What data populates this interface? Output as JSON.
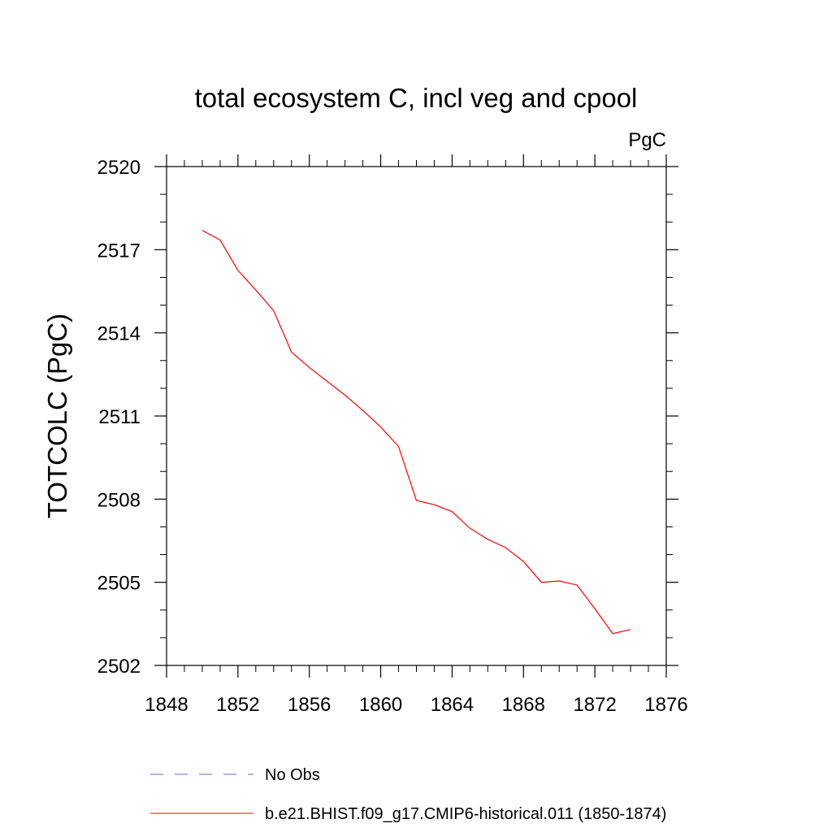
{
  "chart_data": {
    "type": "line",
    "title": "total ecosystem C, incl veg and cpool",
    "units_label": "PgC",
    "xlabel": "",
    "ylabel": "TOTCOLC  (PgC)",
    "xlim": [
      1848,
      1876
    ],
    "ylim": [
      2502,
      2520
    ],
    "x_ticks": [
      1848,
      1852,
      1856,
      1860,
      1864,
      1868,
      1872,
      1876
    ],
    "x_ticks_labels": [
      "1848",
      "1852",
      "1856",
      "1860",
      "1864",
      "1868",
      "1872",
      "1876"
    ],
    "y_ticks": [
      2502,
      2505,
      2508,
      2511,
      2514,
      2517,
      2520
    ],
    "y_ticks_labels": [
      "2502",
      "2505",
      "2508",
      "2511",
      "2514",
      "2517",
      "2520"
    ],
    "grid": false,
    "legend_position": "bottom",
    "series": [
      {
        "name": "b.e21.BHIST.f09_g17.CMIP6-historical.011 (1850-1874)",
        "color": "#ff0000",
        "x": [
          1850,
          1851,
          1852,
          1853,
          1854,
          1855,
          1856,
          1857,
          1858,
          1859,
          1860,
          1861,
          1862,
          1863,
          1864,
          1865,
          1866,
          1867,
          1868,
          1869,
          1870,
          1871,
          1872,
          1873,
          1874
        ],
        "y": [
          2517.7,
          2517.35,
          2516.25,
          2515.55,
          2514.8,
          2513.3,
          2512.75,
          2512.25,
          2511.75,
          2511.2,
          2510.6,
          2509.9,
          2507.95,
          2507.8,
          2507.55,
          2506.95,
          2506.55,
          2506.25,
          2505.75,
          2505.0,
          2505.05,
          2504.9,
          2504.05,
          2503.15,
          2503.3
        ]
      }
    ],
    "legend": [
      {
        "label": "No Obs",
        "color": "#6666cc",
        "style": "dashed"
      },
      {
        "label": "b.e21.BHIST.f09_g17.CMIP6-historical.011 (1850-1874)",
        "color": "#ff0000",
        "style": "solid"
      }
    ]
  }
}
